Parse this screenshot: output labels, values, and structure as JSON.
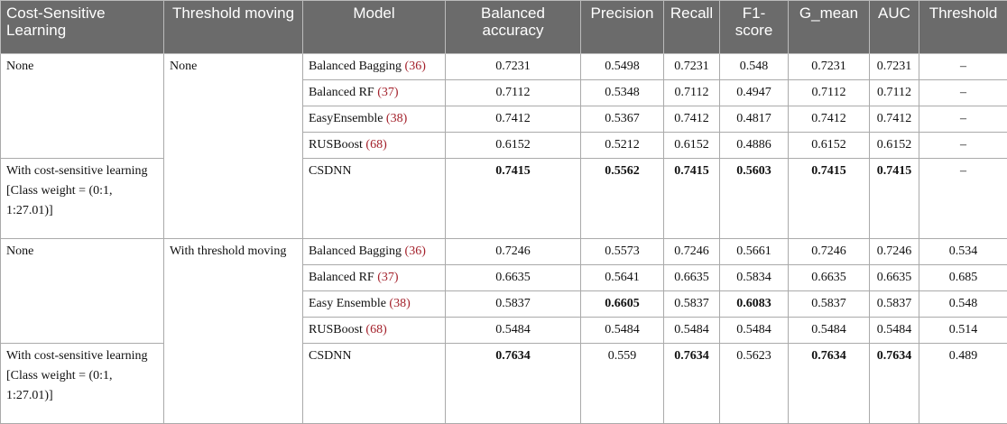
{
  "table": {
    "header": [
      "Cost-Sensitive Learning",
      "Threshold moving",
      "Model",
      "Balanced accuracy",
      "Precision",
      "Recall",
      "F1-score",
      "G_mean",
      "AUC",
      "Threshold"
    ],
    "sections": [
      {
        "threshold_moving": "None",
        "subgroups": [
          {
            "cost_sensitive": "None",
            "rows": [
              {
                "model": "Balanced Bagging",
                "ref": "(36)",
                "values": [
                  "0.7231",
                  "0.5498",
                  "0.7231",
                  "0.548",
                  "0.7231",
                  "0.7231",
                  "–"
                ],
                "bold": []
              },
              {
                "model": "Balanced RF",
                "ref": "(37)",
                "values": [
                  "0.7112",
                  "0.5348",
                  "0.7112",
                  "0.4947",
                  "0.7112",
                  "0.7112",
                  "–"
                ],
                "bold": []
              },
              {
                "model": "EasyEnsemble",
                "ref": "(38)",
                "values": [
                  "0.7412",
                  "0.5367",
                  "0.7412",
                  "0.4817",
                  "0.7412",
                  "0.7412",
                  "–"
                ],
                "bold": []
              },
              {
                "model": "RUSBoost",
                "ref": "(68)",
                "values": [
                  "0.6152",
                  "0.5212",
                  "0.6152",
                  "0.4886",
                  "0.6152",
                  "0.6152",
                  "–"
                ],
                "bold": []
              }
            ]
          },
          {
            "cost_sensitive": "With cost-sensitive learning [Class weight = (0:1, 1:27.01)]",
            "rows": [
              {
                "model": "CSDNN",
                "values": [
                  "0.7415",
                  "0.5562",
                  "0.7415",
                  "0.5603",
                  "0.7415",
                  "0.7415",
                  "–"
                ],
                "bold": [
                  0,
                  1,
                  2,
                  3,
                  4,
                  5
                ]
              }
            ]
          }
        ]
      },
      {
        "threshold_moving": "With threshold moving",
        "subgroups": [
          {
            "cost_sensitive": "None",
            "rows": [
              {
                "model": "Balanced Bagging",
                "ref": "(36)",
                "values": [
                  "0.7246",
                  "0.5573",
                  "0.7246",
                  "0.5661",
                  "0.7246",
                  "0.7246",
                  "0.534"
                ],
                "bold": []
              },
              {
                "model": "Balanced RF",
                "ref": "(37)",
                "values": [
                  "0.6635",
                  "0.5641",
                  "0.6635",
                  "0.5834",
                  "0.6635",
                  "0.6635",
                  "0.685"
                ],
                "bold": []
              },
              {
                "model": "Easy Ensemble",
                "ref": "(38)",
                "values": [
                  "0.5837",
                  "0.6605",
                  "0.5837",
                  "0.6083",
                  "0.5837",
                  "0.5837",
                  "0.548"
                ],
                "bold": [
                  1,
                  3
                ]
              },
              {
                "model": "RUSBoost",
                "ref": "(68)",
                "values": [
                  "0.5484",
                  "0.5484",
                  "0.5484",
                  "0.5484",
                  "0.5484",
                  "0.5484",
                  "0.514"
                ],
                "bold": []
              }
            ]
          },
          {
            "cost_sensitive": "With cost-sensitive learning [Class weight = (0:1, 1:27.01)]",
            "rows": [
              {
                "model": "CSDNN",
                "values": [
                  "0.7634",
                  "0.559",
                  "0.7634",
                  "0.5623",
                  "0.7634",
                  "0.7634",
                  "0.489"
                ],
                "bold": [
                  0,
                  2,
                  4,
                  5
                ]
              }
            ]
          }
        ]
      }
    ]
  }
}
